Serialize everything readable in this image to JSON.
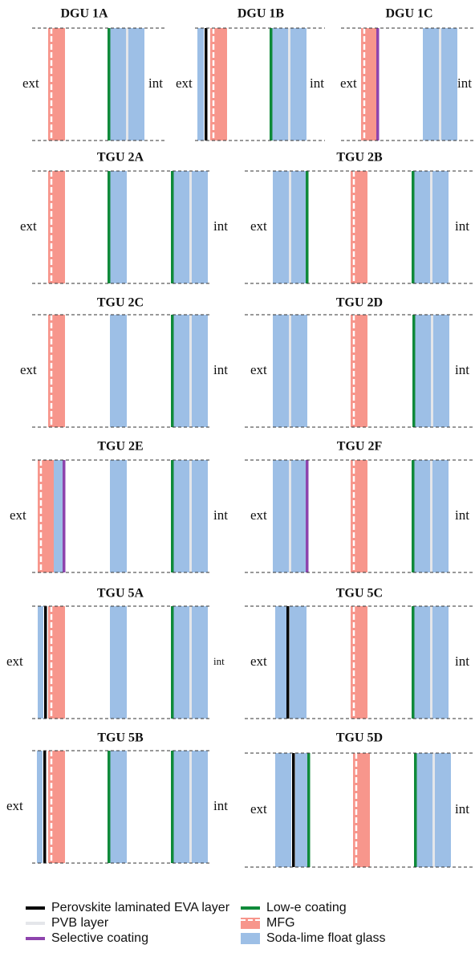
{
  "panels": [
    {
      "title": "DGU 1A",
      "ext": "ext",
      "int": "int"
    },
    {
      "title": "DGU 1B",
      "ext": "ext",
      "int": "int"
    },
    {
      "title": "DGU 1C",
      "ext": "ext",
      "int": "int"
    },
    {
      "title": "TGU 2A",
      "ext": "ext",
      "int": "int"
    },
    {
      "title": "TGU 2B",
      "ext": "ext",
      "int": "int"
    },
    {
      "title": "TGU 2C",
      "ext": "ext",
      "int": "int"
    },
    {
      "title": "TGU 2D",
      "ext": "ext",
      "int": "int"
    },
    {
      "title": "TGU 2E",
      "ext": "ext",
      "int": "int"
    },
    {
      "title": "TGU 2F",
      "ext": "ext",
      "int": "int"
    },
    {
      "title": "TGU 5A",
      "ext": "ext",
      "int": "int"
    },
    {
      "title": "TGU 5C",
      "ext": "ext",
      "int": "int"
    },
    {
      "title": "TGU 5B",
      "ext": "ext",
      "int": "int"
    },
    {
      "title": "TGU 5D",
      "ext": "ext",
      "int": "int"
    }
  ],
  "legend": [
    "Perovskite laminated EVA layer",
    "Low-e coating",
    "PVB layer",
    "MFG",
    "Selective coating",
    "Soda-lime float glass"
  ]
}
